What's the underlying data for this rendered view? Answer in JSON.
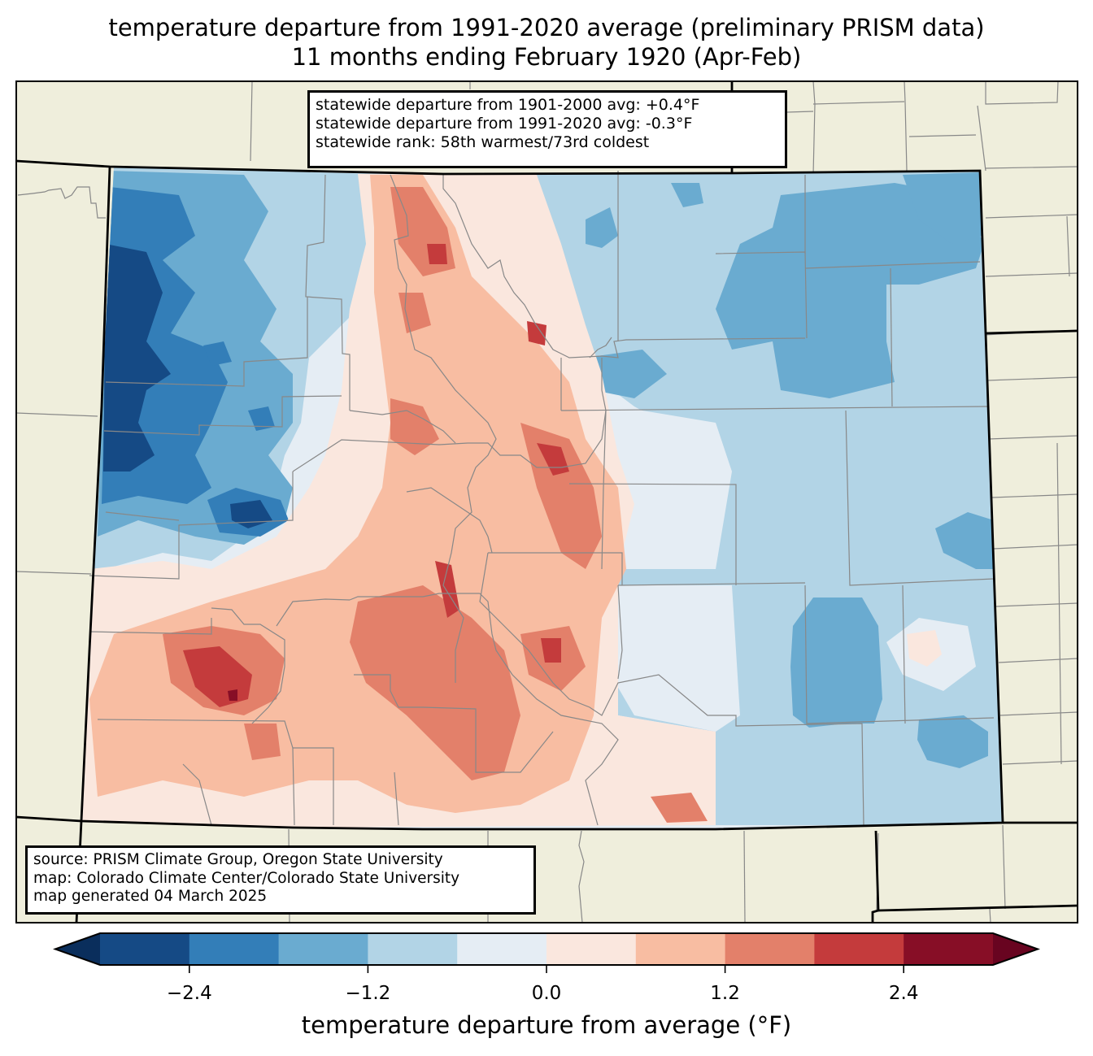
{
  "title": {
    "line1": "temperature departure from 1991-2020 average (preliminary PRISM data)",
    "line2": "11 months ending February 1920 (Apr-Feb)"
  },
  "stats_box": {
    "lines": [
      "statewide departure from 1901-2000 avg: +0.4°F",
      "statewide departure from 1991-2020 avg: -0.3°F",
      "statewide rank: 58th warmest/73rd coldest"
    ]
  },
  "source_box": {
    "lines": [
      "source: PRISM Climate Group, Oregon State University",
      "map: Colorado Climate Center/Colorado State University",
      "map generated 04 March 2025"
    ]
  },
  "colors": {
    "land": "#efeedc",
    "county_line": "#888888",
    "state_line": "#000000"
  },
  "chart_data": {
    "type": "heatmap",
    "title": "temperature departure from 1991-2020 average (preliminary PRISM data) — 11 months ending February 1920 (Apr-Feb)",
    "region": "Colorado",
    "colorbar": {
      "label": "temperature departure from average (°F)",
      "orientation": "horizontal",
      "placement": "bottom",
      "extend": "both",
      "levels": [
        -3.0,
        -2.4,
        -1.8,
        -1.2,
        -0.6,
        0.0,
        0.6,
        1.2,
        1.8,
        2.4,
        3.0
      ],
      "colors": [
        "#154a85",
        "#337eb8",
        "#6aabd0",
        "#b2d4e6",
        "#e5edf4",
        "#fae7de",
        "#f8bda2",
        "#e3806a",
        "#c43b3c",
        "#870e26"
      ],
      "under_color": "#0a2e5c",
      "over_color": "#680420",
      "ticks": [
        -2.4,
        -1.2,
        0.0,
        1.2,
        2.4
      ],
      "tick_labels": [
        "−2.4",
        "−1.2",
        "0.0",
        "1.2",
        "2.4"
      ]
    },
    "statewide_departure_1901_2000_F": 0.4,
    "statewide_departure_1991_2020_F": -0.3,
    "statewide_rank_warmest": 58,
    "statewide_rank_coldest": 73,
    "pattern_summary": {
      "northwest": "strongly below average (-1.8 to below -3.0 °F)",
      "central_mountains": "mixed, mostly above average (+0.6 to +2.4 °F)",
      "southwest_and_south_central": "above average (+0.6 to +3.0 °F)",
      "eastern_plains": "below average (-0.6 to -2.4 °F)"
    }
  }
}
